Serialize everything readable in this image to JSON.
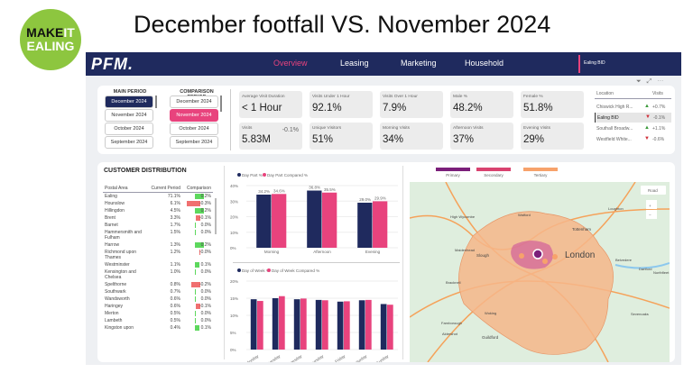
{
  "logo": {
    "line1a": "MAKE",
    "line1b": "IT",
    "line2": "EALING"
  },
  "title": "December footfall VS. November 2024",
  "nav": {
    "brand": "PFM.",
    "items": [
      "Overview",
      "Leasing",
      "Marketing",
      "Household"
    ],
    "active": "Overview",
    "location": "Ealing BID"
  },
  "colors": {
    "navy": "#1f2a5e",
    "pink": "#e8437d",
    "green": "#5dd85d",
    "red": "#f07070",
    "logo_green": "#8dc63f",
    "primary": "#7b1f7a",
    "secondary": "#d9426f",
    "tertiary": "#f7a26b"
  },
  "periods": {
    "main_label": "MAIN PERIOD",
    "comparison_label": "COMPARISON PERIOD",
    "main": [
      "December 2024",
      "November 2024",
      "October 2024",
      "September 2024"
    ],
    "main_selected": "December 2024",
    "comparison": [
      "December 2024",
      "November 2024",
      "October 2024",
      "September 2024"
    ],
    "comparison_selected": "November 2024"
  },
  "kpis": [
    {
      "title": "Average Visit Duration",
      "value": "< 1 Hour"
    },
    {
      "title": "Visits Under 1 Hour",
      "value": "92.1%"
    },
    {
      "title": "Visits Over 1 Hour",
      "value": "7.9%"
    },
    {
      "title": "Male %",
      "value": "48.2%"
    },
    {
      "title": "Female %",
      "value": "51.8%"
    },
    {
      "title": "Visits",
      "value": "5.83M",
      "delta": "-0.1%"
    },
    {
      "title": "Unique Visitors",
      "value": "51%"
    },
    {
      "title": "Morning Visits",
      "value": "34%"
    },
    {
      "title": "Afternoon Visits",
      "value": "37%"
    },
    {
      "title": "Evening Visits",
      "value": "29%"
    }
  ],
  "locations": {
    "headers": [
      "Location",
      "Visits"
    ],
    "rows": [
      {
        "name": "Chiswick High R...",
        "change": "+0.7%",
        "dir": "up"
      },
      {
        "name": "Ealing BID",
        "change": "-0.1%",
        "dir": "down"
      },
      {
        "name": "Southall Broadw...",
        "change": "+1.1%",
        "dir": "up"
      },
      {
        "name": "Westfield White...",
        "change": "-0.6%",
        "dir": "down"
      }
    ]
  },
  "distribution": {
    "title": "CUSTOMER DISTRIBUTION",
    "headers": [
      "Postal Area",
      "Current Period",
      "Comparison"
    ],
    "rows": [
      [
        "Ealing",
        "71.1%",
        "0.2%"
      ],
      [
        "Hounslow",
        "6.1%",
        "-0.3%"
      ],
      [
        "Hillingdon",
        "4.5%",
        "0.2%"
      ],
      [
        "Brent",
        "3.3%",
        "-0.1%"
      ],
      [
        "Barnet",
        "1.7%",
        "0.0%"
      ],
      [
        "Hammersmith and Fulham",
        "1.5%",
        "0.0%"
      ],
      [
        "Harrow",
        "1.3%",
        "0.2%"
      ],
      [
        "Richmond upon Thames",
        "1.2%",
        "-0.0%"
      ],
      [
        "Westminster",
        "1.1%",
        "0.1%"
      ],
      [
        "Kensington and Chelsea",
        "1.0%",
        "0.0%"
      ],
      [
        "Spelthorne",
        "0.8%",
        "-0.2%"
      ],
      [
        "Southwark",
        "0.7%",
        "0.0%"
      ],
      [
        "Wandsworth",
        "0.6%",
        "0.0%"
      ],
      [
        "Haringey",
        "0.6%",
        "-0.1%"
      ],
      [
        "Merton",
        "0.5%",
        "0.0%"
      ],
      [
        "Lambeth",
        "0.5%",
        "0.0%"
      ],
      [
        "Kingston upon",
        "0.4%",
        "0.1%"
      ]
    ]
  },
  "chart_data": [
    {
      "type": "bar",
      "categories": [
        "Morning",
        "Afternoon",
        "Evening"
      ],
      "series": [
        {
          "name": "Day Part %",
          "values": [
            34.2,
            36.8,
            29.0
          ]
        },
        {
          "name": "Day Part Compared %",
          "values": [
            34.6,
            35.5,
            29.9
          ]
        }
      ],
      "data_labels": [
        [
          "34.2%",
          "36.8%",
          "29.0%"
        ],
        [
          "34.6%",
          "35.5%",
          "29.9%"
        ]
      ],
      "yticks": [
        "0%",
        "10%",
        "20%",
        "30%",
        "40%"
      ],
      "ylim": [
        0,
        40
      ],
      "legend": "top-left"
    },
    {
      "type": "bar",
      "categories": [
        "Monday",
        "Tuesday",
        "Wednesday",
        "Thursday",
        "Friday",
        "Saturday",
        "Sunday"
      ],
      "series": [
        {
          "name": "Day of Week %",
          "values": [
            14.7,
            15.0,
            14.7,
            14.5,
            14.0,
            14.4,
            13.3
          ]
        },
        {
          "name": "Day of Week Compared %",
          "values": [
            14.2,
            15.6,
            14.9,
            14.4,
            14.1,
            14.5,
            13.1
          ]
        }
      ],
      "yticks": [
        "0%",
        "5%",
        "10%",
        "15%",
        "20%"
      ],
      "ylim": [
        0,
        20
      ],
      "legend": "top-left"
    }
  ],
  "map": {
    "legend": [
      "Primary",
      "Secondary",
      "Tertiary"
    ],
    "style_button": "Road",
    "places": [
      "London",
      "Watford",
      "High Wycombe",
      "Slough",
      "Maidenhead",
      "Bracknell",
      "Woking",
      "Guildford",
      "Farnborough",
      "Aldershot",
      "Tottenham",
      "Loughton",
      "Belvedere",
      "Dartford",
      "Sevenoaks",
      "Northfleet"
    ]
  }
}
